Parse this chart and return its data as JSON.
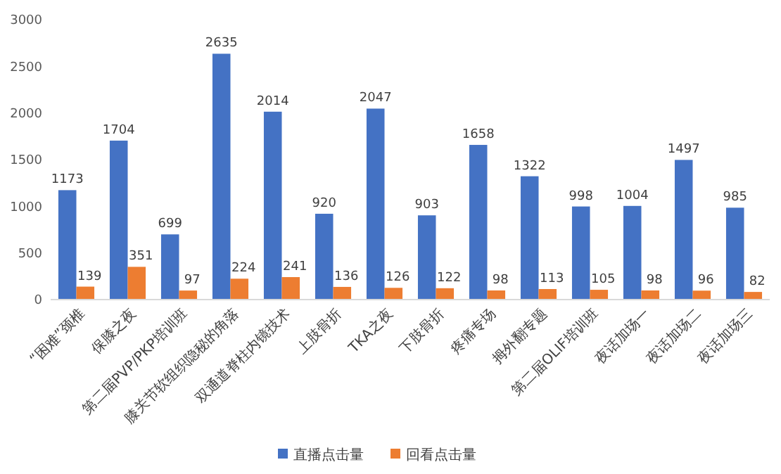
{
  "chart_data": {
    "type": "bar",
    "categories": [
      "“困难”颈椎",
      "保膝之夜",
      "第二届PVP/PKP培训班",
      "膝关节软组织隐秘的角落",
      "双通道脊柱内镜技术",
      "上肢骨折",
      "TKA之夜",
      "下肢骨折",
      "疼痛专场",
      "拇外翻专题",
      "第二届OLIF培训班",
      "夜话加场一",
      "夜话加场二",
      "夜话加场三"
    ],
    "series": [
      {
        "name": "直播点击量",
        "color": "#4472c4",
        "values": [
          1173,
          1704,
          699,
          2635,
          2014,
          920,
          2047,
          903,
          1658,
          1322,
          998,
          1004,
          1497,
          985
        ]
      },
      {
        "name": "回看点击量",
        "color": "#ed7d31",
        "values": [
          139,
          351,
          97,
          224,
          241,
          136,
          126,
          122,
          98,
          113,
          105,
          98,
          96,
          82
        ]
      }
    ],
    "ylim": [
      0,
      3000
    ],
    "yticks": [
      0,
      500,
      1000,
      1500,
      2000,
      2500,
      3000
    ],
    "grid": false,
    "legend": "bottom",
    "data_labels": true
  }
}
